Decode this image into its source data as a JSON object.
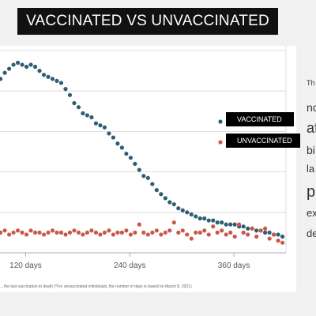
{
  "title": "VACCINATED VS UNVACCINATED",
  "caption": "…the last vaccination to death (*For unvaccinated individuals, the number of days is based on March 8, 2021)",
  "side_text": [
    "Th",
    "nc",
    "af",
    "bi",
    "la",
    "p",
    "ex",
    "de"
  ],
  "colors": {
    "vaccinated": "#2f5d74",
    "unvaccinated": "#c9584a",
    "grid": "#d4d4d4"
  },
  "chart_data": {
    "type": "scatter",
    "x_ticks": [
      "120 days",
      "240 days",
      "360 days"
    ],
    "x_tick_values": [
      120,
      240,
      360
    ],
    "xlim": [
      85,
      420
    ],
    "ylim": [
      0,
      100
    ],
    "grid": "horizontal",
    "legend": {
      "placement": "right",
      "entries": [
        "VACCINATED",
        "UNVACCINATED"
      ]
    },
    "series": [
      {
        "name": "VACCINATED",
        "x": [
          86,
          91,
          96,
          101,
          106,
          111,
          116,
          121,
          126,
          131,
          136,
          141,
          146,
          151,
          156,
          161,
          166,
          171,
          176,
          181,
          186,
          191,
          196,
          201,
          206,
          211,
          216,
          221,
          226,
          231,
          236,
          241,
          246,
          251,
          256,
          261,
          266,
          271,
          276,
          281,
          286,
          291,
          296,
          301,
          306,
          311,
          316,
          321,
          326,
          331,
          336,
          341,
          346,
          351,
          356,
          361,
          366,
          371,
          376,
          381,
          386,
          391,
          396,
          401,
          406,
          411,
          416
        ],
        "y": [
          82,
          86,
          89,
          91,
          93,
          94,
          93,
          92,
          93,
          92,
          90,
          88,
          87,
          86,
          85,
          84,
          81,
          78,
          74,
          72,
          69,
          68,
          67,
          64,
          63,
          62,
          59,
          57,
          54,
          52,
          49,
          47,
          44,
          41,
          38,
          37,
          34,
          31,
          29,
          27,
          25,
          24,
          22,
          21,
          20,
          19,
          18,
          17,
          17,
          16,
          16,
          15,
          15,
          14,
          14,
          14,
          13,
          13,
          12,
          12,
          11,
          11,
          10,
          10,
          9,
          9,
          8
        ]
      },
      {
        "name": "UNVACCINATED",
        "x": [
          86,
          91,
          96,
          101,
          106,
          111,
          116,
          121,
          126,
          131,
          136,
          141,
          146,
          151,
          156,
          161,
          166,
          171,
          176,
          181,
          186,
          191,
          196,
          201,
          206,
          211,
          216,
          221,
          226,
          231,
          236,
          241,
          246,
          251,
          256,
          261,
          266,
          271,
          276,
          281,
          286,
          291,
          296,
          301,
          306,
          311,
          316,
          321,
          326,
          331,
          336,
          341,
          346,
          351,
          356,
          361,
          366,
          371,
          376,
          381,
          386,
          391,
          396,
          401,
          406,
          411,
          416
        ],
        "y": [
          11,
          10,
          11,
          9,
          10,
          11,
          10,
          9,
          11,
          10,
          10,
          9,
          10,
          11,
          10,
          10,
          9,
          10,
          11,
          10,
          9,
          10,
          11,
          10,
          9,
          10,
          11,
          9,
          10,
          10,
          11,
          9,
          10,
          14,
          10,
          9,
          10,
          11,
          9,
          10,
          11,
          15,
          10,
          11,
          9,
          7,
          10,
          10,
          11,
          9,
          13,
          10,
          11,
          9,
          10,
          8,
          14,
          10,
          9,
          12,
          8,
          11,
          12,
          7,
          9,
          6,
          5
        ]
      }
    ]
  }
}
